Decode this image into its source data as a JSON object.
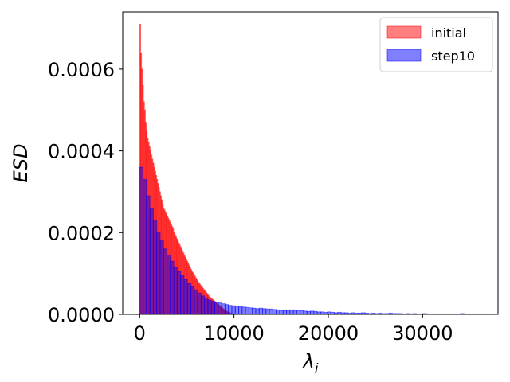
{
  "chart_data": {
    "type": "bar",
    "xlabel": "λ_i",
    "ylabel": "ESD",
    "xlim": [
      -1800,
      38000
    ],
    "ylim": [
      0,
      0.00074
    ],
    "xticks": [
      0,
      10000,
      20000,
      30000
    ],
    "xtick_labels": [
      "0",
      "10000",
      "20000",
      "30000"
    ],
    "yticks": [
      0,
      0.0002,
      0.0004,
      0.0006
    ],
    "ytick_labels": [
      "0.0000",
      "0.0002",
      "0.0004",
      "0.0006"
    ],
    "grid": false,
    "legend_position": "top-right",
    "series": [
      {
        "name": "initial",
        "color": "#ff0000",
        "alpha": 0.5,
        "bin_width": 100,
        "bin_start": 0,
        "values": [
          0.00071,
          0.00064,
          0.0006,
          0.00056,
          0.00052,
          0.0005,
          0.00047,
          0.00045,
          0.00043,
          0.00042,
          0.00041,
          0.0004,
          0.00039,
          0.00038,
          0.00037,
          0.00036,
          0.00035,
          0.00034,
          0.00033,
          0.00032,
          0.00031,
          0.0003,
          0.00029,
          0.00028,
          0.00027,
          0.00026,
          0.000255,
          0.00025,
          0.000245,
          0.00024,
          0.000235,
          0.00023,
          0.000225,
          0.00022,
          0.000215,
          0.00021,
          0.0002,
          0.000195,
          0.00019,
          0.000185,
          0.00018,
          0.000175,
          0.00017,
          0.000165,
          0.00016,
          0.000155,
          0.00015,
          0.000145,
          0.00014,
          0.000135,
          0.00013,
          0.000125,
          0.00012,
          0.000115,
          0.00011,
          0.000106,
          0.000102,
          9.8e-05,
          9.4e-05,
          9e-05,
          8.6e-05,
          8.2e-05,
          7.8e-05,
          7.5e-05,
          7.2e-05,
          6.9e-05,
          6.6e-05,
          6.3e-05,
          6e-05,
          5.7e-05,
          5.4e-05,
          5.1e-05,
          4.8e-05,
          4.5e-05,
          4.2e-05,
          4e-05,
          3.8e-05,
          3.6e-05,
          3.4e-05,
          3.2e-05,
          3e-05,
          2.8e-05,
          2.6e-05,
          2.4e-05,
          2.2e-05,
          2e-05,
          1.8e-05,
          1.6e-05,
          1.4e-05,
          1.2e-05,
          1e-05,
          8e-06,
          7e-06,
          6e-06,
          5e-06,
          4e-06,
          3e-06,
          2e-06,
          1e-06,
          1e-06
        ]
      },
      {
        "name": "step10",
        "color": "#0000ff",
        "alpha": 0.5,
        "bin_width": 362,
        "bin_start": 0,
        "values": [
          0.00036,
          0.00033,
          0.00029,
          0.00026,
          0.00023,
          0.0002,
          0.00018,
          0.00016,
          0.000145,
          0.00013,
          0.000115,
          0.000105,
          9.5e-05,
          8.5e-05,
          7.5e-05,
          6.8e-05,
          6e-05,
          5.2e-05,
          4.5e-05,
          4e-05,
          3.5e-05,
          3.2e-05,
          3e-05,
          2.8e-05,
          2.6e-05,
          2.4e-05,
          2.2e-05,
          2.1e-05,
          2e-05,
          1.9e-05,
          1.8e-05,
          1.7e-05,
          1.6e-05,
          1.5e-05,
          1.4e-05,
          1.5e-05,
          1.4e-05,
          1.3e-05,
          1.3e-05,
          1.2e-05,
          1.1e-05,
          1e-05,
          9e-06,
          1e-05,
          1.1e-05,
          9e-06,
          1e-05,
          9e-06,
          8e-06,
          7e-06,
          8e-06,
          7e-06,
          6e-06,
          6e-06,
          5e-06,
          6e-06,
          5e-06,
          4e-06,
          5e-06,
          4e-06,
          4e-06,
          3e-06,
          4e-06,
          3e-06,
          3e-06,
          4e-06,
          3e-06,
          2e-06,
          3e-06,
          2e-06,
          3e-06,
          2e-06,
          2e-06,
          3e-06,
          2e-06,
          2e-06,
          2e-06,
          1e-06,
          2e-06,
          1e-06,
          2e-06,
          1e-06,
          1e-06,
          2e-06,
          1e-06,
          1e-06,
          1e-06,
          1e-06,
          1e-06,
          1e-06,
          1e-06,
          1e-06,
          1e-06,
          1e-06,
          2e-06,
          1e-06,
          1e-06,
          1e-06,
          0.0,
          1e-06
        ]
      }
    ]
  }
}
